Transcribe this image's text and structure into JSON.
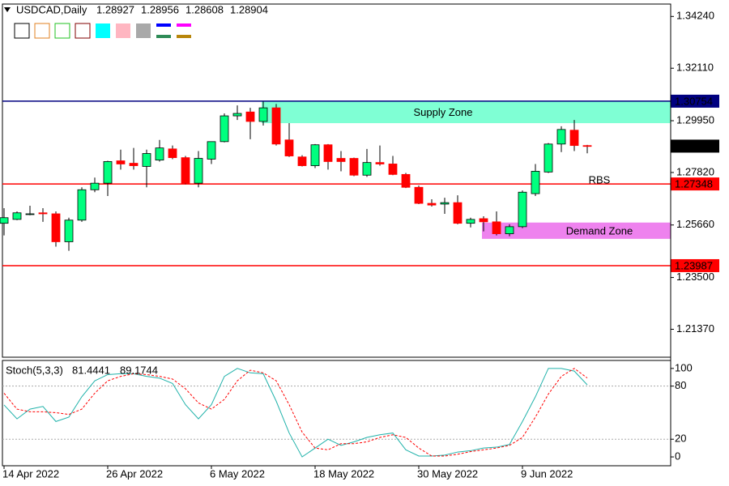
{
  "chart_data": [
    {
      "type": "candlestick",
      "title": "USDCAD,Daily",
      "categories": [
        "14 Apr 2022",
        null,
        null,
        null,
        null,
        null,
        null,
        null,
        "26 Apr 2022",
        null,
        null,
        null,
        null,
        null,
        null,
        null,
        "6 May 2022",
        null,
        null,
        null,
        null,
        null,
        null,
        null,
        "18 May 2022",
        null,
        null,
        null,
        null,
        null,
        null,
        null,
        "30 May 2022",
        null,
        null,
        null,
        null,
        null,
        null,
        null,
        "9 Jun 2022",
        null,
        null,
        null,
        null,
        null
      ],
      "open": [
        1.2573,
        1.2589,
        1.2609,
        1.2616,
        1.2612,
        1.2497,
        1.2586,
        1.2711,
        1.2738,
        1.283,
        1.282,
        1.2807,
        1.2833,
        1.2879,
        1.2843,
        1.2738,
        1.2837,
        1.2909,
        1.3015,
        1.3031,
        1.2992,
        1.3048,
        1.2916,
        1.2846,
        1.281,
        1.2896,
        1.284,
        1.284,
        1.2771,
        1.2823,
        1.2817,
        1.2774,
        1.2721,
        1.2655,
        1.2652,
        1.2658,
        1.2573,
        1.2592,
        1.2579,
        1.253,
        1.2559,
        1.2695,
        1.2784,
        1.2899,
        1.2956,
        1.28927
      ],
      "high": [
        1.2635,
        1.2622,
        1.2645,
        1.2635,
        1.2622,
        1.2596,
        1.2721,
        1.2761,
        1.283,
        1.2876,
        1.2883,
        1.2876,
        1.2916,
        1.2893,
        1.285,
        1.287,
        1.2909,
        1.3025,
        1.3058,
        1.3048,
        1.3074,
        1.3064,
        1.2985,
        1.2853,
        1.2899,
        1.2899,
        1.287,
        1.2843,
        1.2879,
        1.2893,
        1.285,
        1.278,
        1.2728,
        1.2672,
        1.2678,
        1.2688,
        1.2596,
        1.2602,
        1.2622,
        1.2569,
        1.2708,
        1.2817,
        1.2903,
        1.2972,
        1.2998,
        1.28956
      ],
      "low": [
        1.2523,
        1.2586,
        1.2606,
        1.2579,
        1.2477,
        1.246,
        1.2579,
        1.2701,
        1.2685,
        1.2794,
        1.2794,
        1.2721,
        1.2827,
        1.2837,
        1.2734,
        1.2721,
        1.2817,
        1.2906,
        1.2998,
        1.2919,
        1.2975,
        1.2893,
        1.2846,
        1.2807,
        1.28,
        1.2794,
        1.2787,
        1.2767,
        1.2764,
        1.281,
        1.2771,
        1.2718,
        1.2652,
        1.2642,
        1.2612,
        1.2569,
        1.2556,
        1.254,
        1.2523,
        1.252,
        1.2553,
        1.2685,
        1.278,
        1.2866,
        1.287,
        1.28608
      ],
      "close": [
        1.2596,
        1.2616,
        1.2612,
        1.2612,
        1.2497,
        1.2586,
        1.2711,
        1.2738,
        1.2827,
        1.2817,
        1.281,
        1.286,
        1.2883,
        1.2843,
        1.2738,
        1.284,
        1.2909,
        1.3015,
        1.3025,
        1.2992,
        1.3048,
        1.2899,
        1.285,
        1.281,
        1.2896,
        1.2827,
        1.2827,
        1.2771,
        1.2823,
        1.2817,
        1.2774,
        1.2721,
        1.2655,
        1.2648,
        1.2658,
        1.2573,
        1.2589,
        1.2579,
        1.253,
        1.2559,
        1.2701,
        1.2787,
        1.2899,
        1.2959,
        1.2893,
        1.28904
      ],
      "up_color": "#00ff7f",
      "down_color": "#ff0000",
      "ylim": [
        1.2022,
        1.3475
      ],
      "yticks": [
        {
          "value": 1.3424,
          "label": "1.34240"
        },
        {
          "value": 1.3211,
          "label": "1.32110"
        },
        {
          "value": 1.2995,
          "label": "1.29950"
        },
        {
          "value": 1.2782,
          "label": "1.27820"
        },
        {
          "value": 1.2566,
          "label": "1.25660"
        },
        {
          "value": 1.235,
          "label": "1.23500"
        },
        {
          "value": 1.2137,
          "label": "1.21370"
        }
      ],
      "hlines": [
        {
          "value": 1.30754,
          "color": "#000080"
        },
        {
          "value": 1.27348,
          "color": "#ff0000"
        },
        {
          "value": 1.23987,
          "color": "#ff0000"
        }
      ],
      "zones": [
        {
          "name": "Supply Zone",
          "low": 1.2985,
          "high": 1.30754,
          "color": "#7fffd4",
          "text_color": "#e01010"
        },
        {
          "name": "Demand Zone",
          "low": 1.2509,
          "high": 1.2576,
          "color": "#ee82ee",
          "text_color": "#1a1ad0"
        }
      ],
      "annotation": "RBS"
    },
    {
      "type": "line",
      "title": "Stoch(5,3,3)",
      "series": [
        {
          "color": "#20b2aa",
          "values": [
            58.7,
            43,
            54,
            57,
            40,
            45,
            68,
            86,
            93,
            94,
            94,
            91,
            89,
            83,
            59,
            43,
            59,
            91,
            100,
            95,
            94,
            63,
            27,
            0,
            10,
            20,
            13,
            17,
            22,
            25,
            27,
            8,
            1,
            1,
            2,
            5.5,
            7,
            10,
            11,
            14,
            40,
            68,
            100,
            100,
            97,
            81.4441
          ]
        },
        {
          "color": "#ff0000",
          "dashed": true,
          "values": [
            72,
            54,
            51,
            51,
            50,
            48,
            54,
            72,
            86,
            91,
            94,
            93,
            91,
            88,
            77,
            61,
            54,
            65,
            86,
            98,
            95,
            86,
            59,
            28,
            10,
            8,
            15,
            15,
            17,
            22,
            25,
            22,
            10,
            1,
            1,
            3,
            6,
            8,
            10,
            13,
            22,
            45,
            71,
            91,
            100,
            89.1744
          ]
        }
      ],
      "ylim": [
        -10,
        109
      ],
      "yticks": [
        100,
        80,
        20,
        0
      ],
      "levels": [
        80,
        20
      ]
    }
  ]
}
